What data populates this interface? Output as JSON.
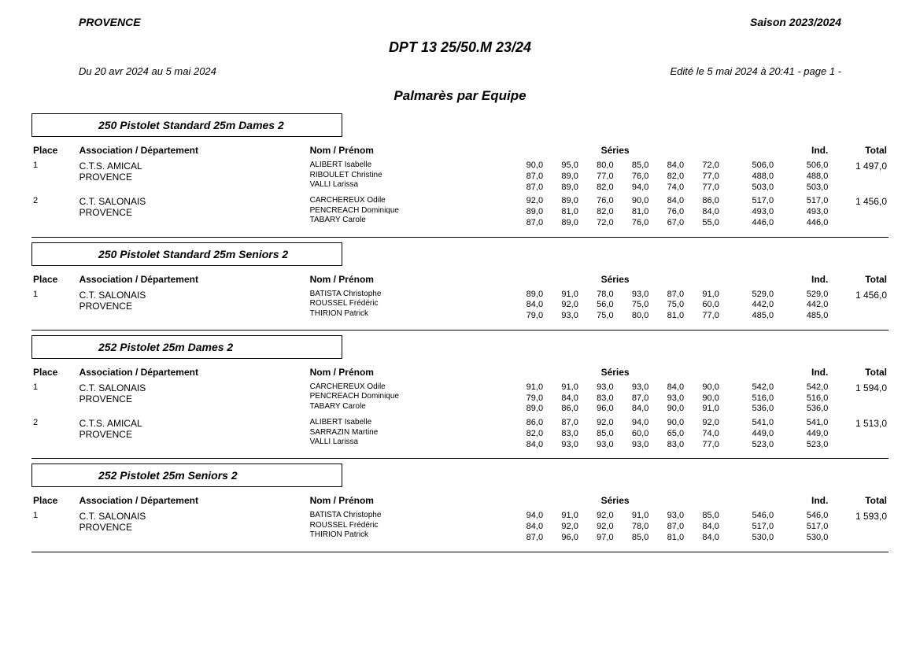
{
  "header": {
    "region": "PROVENCE",
    "season": "Saison 2023/2024",
    "title": "DPT 13 25/50.M 23/24",
    "date_range": "Du 20 avr 2024 au 5 mai 2024",
    "edited": "Edité le 5 mai 2024 à 20:41 - page 1 -",
    "palmares": "Palmarès par Equipe"
  },
  "column_headers": {
    "place": "Place",
    "assoc": "Association / Département",
    "name": "Nom / Prénom",
    "series": "Séries",
    "ind": "Ind.",
    "total": "Total"
  },
  "sections": [
    {
      "title": "250 Pistolet Standard 25m Dames 2",
      "rows": [
        {
          "place": "1",
          "assoc": "C.T.S. AMICAL\nPROVENCE",
          "names": "ALIBERT Isabelle\nRIBOULET Christine\nVALLI Larissa",
          "s": [
            "90,0\n87,0\n87,0",
            "95,0\n89,0\n89,0",
            "80,0\n77,0\n82,0",
            "85,0\n76,0\n94,0",
            "84,0\n82,0\n74,0",
            "72,0\n77,0\n77,0"
          ],
          "ind1": "506,0\n488,0\n503,0",
          "ind2": "506,0\n488,0\n503,0",
          "total": "1 497,0"
        },
        {
          "place": "2",
          "assoc": "C.T. SALONAIS\nPROVENCE",
          "names": "CARCHEREUX Odile\nPENCREACH Dominique\nTABARY Carole",
          "s": [
            "92,0\n89,0\n87,0",
            "89,0\n81,0\n89,0",
            "76,0\n82,0\n72,0",
            "90,0\n81,0\n76,0",
            "84,0\n76,0\n67,0",
            "86,0\n84,0\n55,0"
          ],
          "ind1": "517,0\n493,0\n446,0",
          "ind2": "517,0\n493,0\n446,0",
          "total": "1 456,0"
        }
      ]
    },
    {
      "title": "250 Pistolet Standard 25m Seniors 2",
      "rows": [
        {
          "place": "1",
          "assoc": "C.T. SALONAIS\nPROVENCE",
          "names": "BATISTA Christophe\nROUSSEL Frédéric\nTHIRION Patrick",
          "s": [
            "89,0\n84,0\n79,0",
            "91,0\n92,0\n93,0",
            "78,0\n56,0\n75,0",
            "93,0\n75,0\n80,0",
            "87,0\n75,0\n81,0",
            "91,0\n60,0\n77,0"
          ],
          "ind1": "529,0\n442,0\n485,0",
          "ind2": "529,0\n442,0\n485,0",
          "total": "1 456,0"
        }
      ]
    },
    {
      "title": "252 Pistolet 25m Dames 2",
      "rows": [
        {
          "place": "1",
          "assoc": "C.T. SALONAIS\nPROVENCE",
          "names": "CARCHEREUX Odile\nPENCREACH Dominique\nTABARY Carole",
          "s": [
            "91,0\n79,0\n89,0",
            "91,0\n84,0\n86,0",
            "93,0\n83,0\n96,0",
            "93,0\n87,0\n84,0",
            "84,0\n93,0\n90,0",
            "90,0\n90,0\n91,0"
          ],
          "ind1": "542,0\n516,0\n536,0",
          "ind2": "542,0\n516,0\n536,0",
          "total": "1 594,0"
        },
        {
          "place": "2",
          "assoc": "C.T.S. AMICAL\nPROVENCE",
          "names": "ALIBERT Isabelle\nSARRAZIN Martine\nVALLI Larissa",
          "s": [
            "86,0\n82,0\n84,0",
            "87,0\n83,0\n93,0",
            "92,0\n85,0\n93,0",
            "94,0\n60,0\n93,0",
            "90,0\n65,0\n83,0",
            "92,0\n74,0\n77,0"
          ],
          "ind1": "541,0\n449,0\n523,0",
          "ind2": "541,0\n449,0\n523,0",
          "total": "1 513,0"
        }
      ]
    },
    {
      "title": "252 Pistolet 25m Seniors 2",
      "rows": [
        {
          "place": "1",
          "assoc": "C.T. SALONAIS\nPROVENCE",
          "names": "BATISTA Christophe\nROUSSEL Frédéric\nTHIRION Patrick",
          "s": [
            "94,0\n84,0\n87,0",
            "91,0\n92,0\n96,0",
            "92,0\n92,0\n97,0",
            "91,0\n78,0\n85,0",
            "93,0\n87,0\n81,0",
            "85,0\n84,0\n84,0"
          ],
          "ind1": "546,0\n517,0\n530,0",
          "ind2": "546,0\n517,0\n530,0",
          "total": "1 593,0"
        }
      ]
    }
  ]
}
